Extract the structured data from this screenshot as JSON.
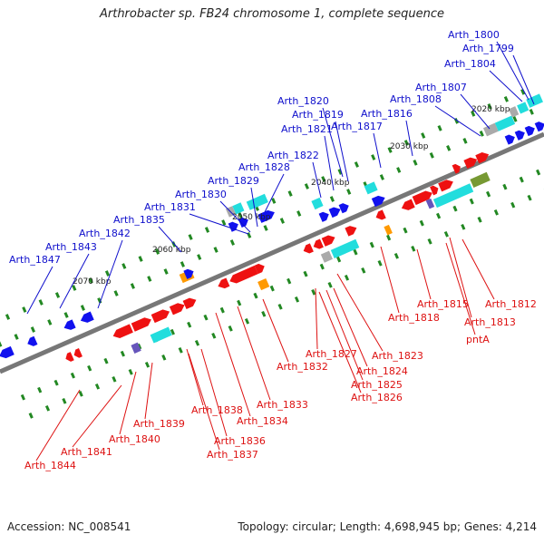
{
  "title": "Arthrobacter sp. FB24 chromosome 1, complete sequence",
  "footer": {
    "accession": "Accession: NC_008541",
    "summary": "Topology: circular; Length: 4,698,945 bp; Genes: 4,214"
  },
  "colors": {
    "forward_label": "#1010cc",
    "reverse_label": "#dd1111",
    "blue_gene": "#1111ee",
    "red_gene": "#ee1111",
    "cyan_gene": "#22dddd",
    "orange_gene": "#ff9900",
    "gray_gene": "#aaaaaa",
    "olive_gene": "#779933",
    "purple_gene": "#6655bb",
    "tick": "#228822",
    "backbone": "#777777"
  },
  "kbp_ticks": [
    "2020 kbp",
    "2030 kbp",
    "2040 kbp",
    "2050 kbp",
    "2060 kbp",
    "2070 kbp"
  ],
  "top_labels": [
    "Arth_1800",
    "Arth_1799",
    "Arth_1804",
    "Arth_1807",
    "Arth_1808",
    "Arth_1816",
    "Arth_1817",
    "Arth_1820",
    "Arth_1819",
    "Arth_1821",
    "Arth_1822",
    "Arth_1828",
    "Arth_1829",
    "Arth_1830",
    "Arth_1831",
    "Arth_1835",
    "Arth_1842",
    "Arth_1843",
    "Arth_1847"
  ],
  "bottom_labels": [
    "Arth_1812",
    "Arth_1815",
    "Arth_1813",
    "pntA",
    "Arth_1818",
    "Arth_1823",
    "Arth_1827",
    "Arth_1824",
    "Arth_1825",
    "Arth_1826",
    "Arth_1832",
    "Arth_1833",
    "Arth_1834",
    "Arth_1838",
    "Arth_1836",
    "Arth_1837",
    "Arth_1839",
    "Arth_1840",
    "Arth_1841",
    "Arth_1844"
  ]
}
